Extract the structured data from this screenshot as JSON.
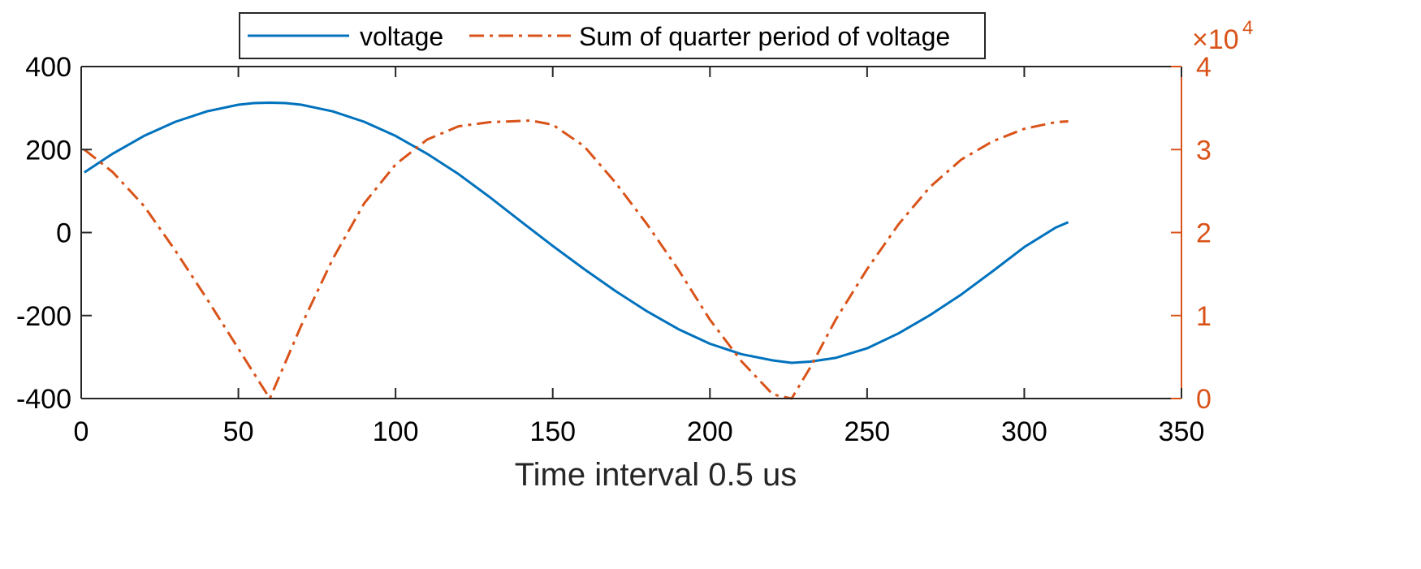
{
  "chart_data": {
    "type": "line",
    "xlabel": "Time interval 0.5 us",
    "xlim": [
      0,
      350
    ],
    "xticks": [
      0,
      50,
      100,
      150,
      200,
      250,
      300,
      350
    ],
    "x_tick_labels": [
      "0",
      "50",
      "100",
      "150",
      "200",
      "250",
      "300",
      "350"
    ],
    "left_axis": {
      "ylim": [
        -400,
        400
      ],
      "ticks": [
        -400,
        -200,
        0,
        200,
        400
      ],
      "tick_labels": [
        "-400",
        "-200",
        "0",
        "200",
        "400"
      ],
      "color": "#000000"
    },
    "right_axis": {
      "ylim": [
        0,
        4
      ],
      "ticks": [
        0,
        1,
        2,
        3,
        4
      ],
      "tick_labels": [
        "0",
        "1",
        "2",
        "3",
        "4"
      ],
      "exponent_label": {
        "base": "×10",
        "power": "4"
      },
      "color": "#D95319"
    },
    "series": [
      {
        "name": "voltage",
        "axis": "left",
        "color": "#0072BD",
        "style": "solid",
        "x": [
          1,
          10,
          20,
          30,
          40,
          50,
          55,
          60,
          65,
          70,
          80,
          90,
          100,
          110,
          120,
          130,
          140,
          150,
          160,
          170,
          180,
          190,
          200,
          210,
          220,
          226,
          232,
          240,
          250,
          260,
          270,
          280,
          290,
          300,
          310,
          314
        ],
        "y": [
          145,
          190,
          233,
          267,
          292,
          308,
          312,
          313,
          312,
          308,
          292,
          267,
          233,
          190,
          141,
          85,
          26,
          -32,
          -88,
          -141,
          -190,
          -233,
          -268,
          -293,
          -308,
          -314,
          -311,
          -302,
          -279,
          -243,
          -199,
          -149,
          -93,
          -35,
          12,
          25
        ]
      },
      {
        "name": "Sum of quarter period of voltage",
        "axis": "right",
        "color": "#D95319",
        "style": "dashdot",
        "x": [
          1,
          10,
          20,
          30,
          40,
          50,
          55,
          60,
          70,
          80,
          90,
          100,
          110,
          120,
          130,
          143,
          150,
          160,
          170,
          180,
          190,
          200,
          210,
          220,
          226,
          232,
          240,
          250,
          260,
          270,
          280,
          290,
          300,
          310,
          314
        ],
        "y": [
          3.0,
          2.73,
          2.32,
          1.78,
          1.2,
          0.6,
          0.3,
          0.0,
          0.88,
          1.68,
          2.35,
          2.82,
          3.12,
          3.28,
          3.33,
          3.35,
          3.3,
          3.04,
          2.6,
          2.1,
          1.55,
          0.95,
          0.45,
          0.05,
          0.0,
          0.38,
          0.95,
          1.56,
          2.1,
          2.55,
          2.88,
          3.1,
          3.25,
          3.33,
          3.34
        ]
      }
    ],
    "legend": {
      "position": "top-center",
      "entries": [
        "voltage",
        "Sum of quarter period of voltage"
      ]
    },
    "grid": false
  }
}
